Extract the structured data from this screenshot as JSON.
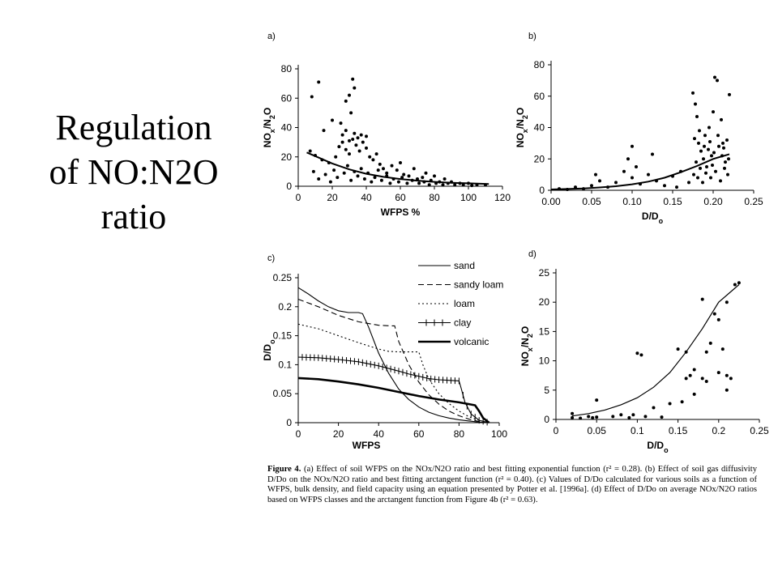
{
  "slide": {
    "title_lines": [
      "Regulation",
      "of NO:N2O",
      "ratio"
    ]
  },
  "caption": {
    "label": "Figure 4.",
    "text": "(a) Effect of soil WFPS on the NOx/N2O ratio and best fitting exponential function (r² = 0.28). (b) Effect of soil gas diffusivity D/Do on the NOx/N2O ratio and best fitting arctangent function (r² = 0.40). (c) Values of D/Do calculated for various soils as a function of WFPS, bulk density, and field capacity using an equation presented by Potter et al. [1996a]. (d) Effect of D/Do on average NOx/N2O ratios based on WFPS classes and the arctangent function from Figure 4b (r² = 0.63)."
  },
  "chart_data": [
    {
      "panel": "a)",
      "type": "scatter",
      "xlabel": "WFPS %",
      "ylabel": "NOx/N2O",
      "xlim": [
        0,
        120
      ],
      "ylim": [
        0,
        80
      ],
      "xticks": [
        0,
        20,
        40,
        60,
        80,
        100,
        120
      ],
      "yticks": [
        0,
        20,
        40,
        60,
        80
      ],
      "points": [
        [
          8,
          61
        ],
        [
          12,
          71
        ],
        [
          28,
          58
        ],
        [
          30,
          62
        ],
        [
          32,
          73
        ],
        [
          33,
          67
        ],
        [
          31,
          50
        ],
        [
          20,
          45
        ],
        [
          15,
          38
        ],
        [
          25,
          43
        ],
        [
          7,
          24
        ],
        [
          10,
          21
        ],
        [
          14,
          18
        ],
        [
          18,
          16
        ],
        [
          22,
          20
        ],
        [
          24,
          27
        ],
        [
          26,
          30
        ],
        [
          28,
          25
        ],
        [
          30,
          22
        ],
        [
          32,
          32
        ],
        [
          34,
          28
        ],
        [
          36,
          24
        ],
        [
          38,
          30
        ],
        [
          40,
          26
        ],
        [
          42,
          20
        ],
        [
          44,
          18
        ],
        [
          46,
          22
        ],
        [
          48,
          15
        ],
        [
          50,
          12
        ],
        [
          52,
          9
        ],
        [
          55,
          14
        ],
        [
          58,
          11
        ],
        [
          60,
          16
        ],
        [
          62,
          8
        ],
        [
          65,
          7
        ],
        [
          68,
          12
        ],
        [
          70,
          5
        ],
        [
          73,
          6
        ],
        [
          75,
          9
        ],
        [
          78,
          4
        ],
        [
          80,
          7
        ],
        [
          83,
          3
        ],
        [
          86,
          5
        ],
        [
          90,
          3
        ],
        [
          95,
          2
        ],
        [
          100,
          2
        ],
        [
          105,
          1
        ],
        [
          110,
          1
        ],
        [
          9,
          10
        ],
        [
          12,
          5
        ],
        [
          16,
          8
        ],
        [
          19,
          3
        ],
        [
          21,
          11
        ],
        [
          23,
          6
        ],
        [
          27,
          9
        ],
        [
          29,
          14
        ],
        [
          31,
          4
        ],
        [
          33,
          10
        ],
        [
          35,
          7
        ],
        [
          37,
          12
        ],
        [
          39,
          5
        ],
        [
          41,
          9
        ],
        [
          43,
          3
        ],
        [
          45,
          6
        ],
        [
          47,
          11
        ],
        [
          49,
          4
        ],
        [
          52,
          7
        ],
        [
          54,
          2
        ],
        [
          56,
          5
        ],
        [
          59,
          3
        ],
        [
          61,
          6
        ],
        [
          64,
          2
        ],
        [
          67,
          4
        ],
        [
          71,
          2
        ],
        [
          74,
          3
        ],
        [
          77,
          1
        ],
        [
          81,
          2
        ],
        [
          85,
          1
        ],
        [
          88,
          2
        ],
        [
          92,
          1
        ],
        [
          97,
          1
        ],
        [
          102,
          0.5
        ],
        [
          26,
          35
        ],
        [
          28,
          38
        ],
        [
          33,
          36
        ],
        [
          35,
          33
        ],
        [
          30,
          31
        ],
        [
          40,
          34
        ],
        [
          37,
          35
        ]
      ],
      "fit": {
        "name": "exponential fit",
        "x": [
          5,
          10,
          20,
          30,
          40,
          50,
          60,
          70,
          80,
          90,
          100,
          112
        ],
        "y": [
          23,
          20.5,
          15.5,
          11.5,
          8.5,
          6.4,
          4.9,
          3.8,
          3.0,
          2.4,
          2.0,
          1.5
        ]
      }
    },
    {
      "panel": "b)",
      "type": "scatter",
      "xlabel": "D/Do",
      "ylabel": "NOx/N2O",
      "xlim": [
        0,
        0.25
      ],
      "ylim": [
        0,
        80
      ],
      "xticks": [
        "0.00",
        "0.05",
        "0.10",
        "0.15",
        "0.20",
        "0.25"
      ],
      "yticks": [
        0,
        20,
        40,
        60,
        80
      ],
      "points": [
        [
          0.01,
          1
        ],
        [
          0.02,
          0.5
        ],
        [
          0.03,
          2
        ],
        [
          0.04,
          1
        ],
        [
          0.05,
          3
        ],
        [
          0.06,
          6
        ],
        [
          0.055,
          10
        ],
        [
          0.07,
          2
        ],
        [
          0.08,
          5
        ],
        [
          0.09,
          12
        ],
        [
          0.095,
          20
        ],
        [
          0.1,
          28
        ],
        [
          0.1,
          8
        ],
        [
          0.105,
          15
        ],
        [
          0.11,
          4
        ],
        [
          0.12,
          10
        ],
        [
          0.125,
          23
        ],
        [
          0.13,
          6
        ],
        [
          0.14,
          3
        ],
        [
          0.15,
          9
        ],
        [
          0.155,
          2
        ],
        [
          0.16,
          12
        ],
        [
          0.17,
          5
        ],
        [
          0.175,
          62
        ],
        [
          0.178,
          55
        ],
        [
          0.18,
          47
        ],
        [
          0.182,
          30
        ],
        [
          0.185,
          25
        ],
        [
          0.188,
          20
        ],
        [
          0.19,
          35
        ],
        [
          0.192,
          15
        ],
        [
          0.195,
          40
        ],
        [
          0.198,
          22
        ],
        [
          0.2,
          50
        ],
        [
          0.202,
          72
        ],
        [
          0.205,
          70
        ],
        [
          0.21,
          45
        ],
        [
          0.212,
          30
        ],
        [
          0.215,
          18
        ],
        [
          0.218,
          10
        ],
        [
          0.22,
          61
        ],
        [
          0.176,
          10
        ],
        [
          0.179,
          18
        ],
        [
          0.181,
          8
        ],
        [
          0.184,
          14
        ],
        [
          0.187,
          5
        ],
        [
          0.191,
          11
        ],
        [
          0.194,
          26
        ],
        [
          0.197,
          8
        ],
        [
          0.199,
          16
        ],
        [
          0.203,
          12
        ],
        [
          0.207,
          28
        ],
        [
          0.209,
          6
        ],
        [
          0.211,
          22
        ],
        [
          0.214,
          14
        ],
        [
          0.217,
          32
        ],
        [
          0.219,
          20
        ],
        [
          0.177,
          33
        ],
        [
          0.183,
          38
        ],
        [
          0.189,
          28
        ],
        [
          0.196,
          31
        ],
        [
          0.201,
          24
        ],
        [
          0.206,
          35
        ],
        [
          0.213,
          27
        ]
      ],
      "fit": {
        "name": "arctangent fit",
        "x": [
          0,
          0.02,
          0.04,
          0.06,
          0.08,
          0.1,
          0.12,
          0.14,
          0.16,
          0.18,
          0.2,
          0.22
        ],
        "y": [
          0.5,
          0.8,
          1.2,
          1.8,
          2.6,
          3.8,
          5.5,
          8,
          11.5,
          15.5,
          20,
          23
        ]
      }
    },
    {
      "panel": "c)",
      "type": "line",
      "xlabel": "WFPS",
      "ylabel": "D/Do",
      "xlim": [
        0,
        100
      ],
      "ylim": [
        0,
        0.25
      ],
      "xticks": [
        0,
        20,
        40,
        60,
        80,
        100
      ],
      "yticks": [
        "0",
        "0.05",
        "0.1",
        "0.15",
        "0.2",
        "0.25"
      ],
      "legend_position": "top-right",
      "series": [
        {
          "name": "sand",
          "style": "solid",
          "x": [
            0,
            5,
            10,
            15,
            20,
            25,
            30,
            32,
            35,
            40,
            45,
            50,
            55,
            60,
            65,
            70,
            75,
            80,
            85,
            90,
            95
          ],
          "y": [
            0.233,
            0.222,
            0.21,
            0.2,
            0.193,
            0.19,
            0.19,
            0.188,
            0.165,
            0.12,
            0.085,
            0.058,
            0.04,
            0.027,
            0.018,
            0.012,
            0.008,
            0.005,
            0.003,
            0.001,
            0
          ]
        },
        {
          "name": "sandy loam",
          "style": "dashed",
          "x": [
            0,
            10,
            20,
            30,
            40,
            46,
            48,
            50,
            55,
            60,
            65,
            70,
            75,
            80,
            85,
            90,
            95
          ],
          "y": [
            0.213,
            0.2,
            0.185,
            0.174,
            0.168,
            0.167,
            0.167,
            0.14,
            0.1,
            0.07,
            0.048,
            0.032,
            0.02,
            0.012,
            0.006,
            0.002,
            0
          ]
        },
        {
          "name": "loam",
          "style": "dotted",
          "x": [
            0,
            10,
            20,
            30,
            40,
            45,
            50,
            55,
            60,
            62,
            65,
            70,
            75,
            80,
            85,
            90,
            95
          ],
          "y": [
            0.17,
            0.162,
            0.15,
            0.138,
            0.127,
            0.123,
            0.122,
            0.122,
            0.122,
            0.1,
            0.075,
            0.05,
            0.033,
            0.02,
            0.01,
            0.004,
            0
          ]
        },
        {
          "name": "clay",
          "style": "plus",
          "x": [
            0,
            10,
            20,
            30,
            40,
            50,
            55,
            60,
            65,
            70,
            75,
            80,
            81,
            83,
            86,
            90,
            95
          ],
          "y": [
            0.113,
            0.112,
            0.109,
            0.105,
            0.098,
            0.089,
            0.084,
            0.08,
            0.076,
            0.074,
            0.073,
            0.072,
            0.06,
            0.035,
            0.015,
            0.004,
            0
          ]
        },
        {
          "name": "volcanic",
          "style": "bold",
          "x": [
            0,
            10,
            20,
            30,
            40,
            50,
            60,
            70,
            80,
            85,
            88,
            90,
            92,
            95
          ],
          "y": [
            0.077,
            0.075,
            0.071,
            0.066,
            0.06,
            0.053,
            0.046,
            0.04,
            0.035,
            0.032,
            0.03,
            0.02,
            0.008,
            0
          ]
        }
      ]
    },
    {
      "panel": "d)",
      "type": "scatter",
      "xlabel": "D/Do",
      "ylabel": "NOx/N2O",
      "xlim": [
        0,
        0.25
      ],
      "ylim": [
        0,
        25
      ],
      "xticks": [
        "0",
        "0.05",
        "0.1",
        "0.15",
        "0.2",
        "0.25"
      ],
      "yticks": [
        0,
        5,
        10,
        15,
        20,
        25
      ],
      "points": [
        [
          0.02,
          1
        ],
        [
          0.02,
          0.3
        ],
        [
          0.03,
          0.2
        ],
        [
          0.04,
          0.5
        ],
        [
          0.045,
          0.3
        ],
        [
          0.05,
          3.3
        ],
        [
          0.05,
          0.4
        ],
        [
          0.07,
          0.5
        ],
        [
          0.08,
          0.8
        ],
        [
          0.09,
          0.3
        ],
        [
          0.095,
          0.8
        ],
        [
          0.1,
          11.3
        ],
        [
          0.105,
          11
        ],
        [
          0.11,
          0.5
        ],
        [
          0.12,
          2
        ],
        [
          0.13,
          0.4
        ],
        [
          0.14,
          2.7
        ],
        [
          0.15,
          12
        ],
        [
          0.155,
          3
        ],
        [
          0.16,
          11.5
        ],
        [
          0.16,
          7
        ],
        [
          0.165,
          7.5
        ],
        [
          0.17,
          8.5
        ],
        [
          0.17,
          4.3
        ],
        [
          0.18,
          20.5
        ],
        [
          0.18,
          7
        ],
        [
          0.185,
          6.5
        ],
        [
          0.185,
          11.5
        ],
        [
          0.19,
          13
        ],
        [
          0.195,
          18
        ],
        [
          0.2,
          17
        ],
        [
          0.2,
          8
        ],
        [
          0.205,
          12
        ],
        [
          0.21,
          20
        ],
        [
          0.21,
          7.5
        ],
        [
          0.21,
          5
        ],
        [
          0.215,
          7
        ],
        [
          0.22,
          23
        ],
        [
          0.225,
          23.3
        ]
      ],
      "fit": {
        "name": "arctangent fit",
        "x": [
          0.02,
          0.04,
          0.06,
          0.08,
          0.1,
          0.12,
          0.14,
          0.16,
          0.18,
          0.2,
          0.225
        ],
        "y": [
          0.6,
          1.0,
          1.6,
          2.5,
          3.7,
          5.5,
          8,
          11.5,
          15.5,
          20,
          23
        ]
      }
    }
  ]
}
